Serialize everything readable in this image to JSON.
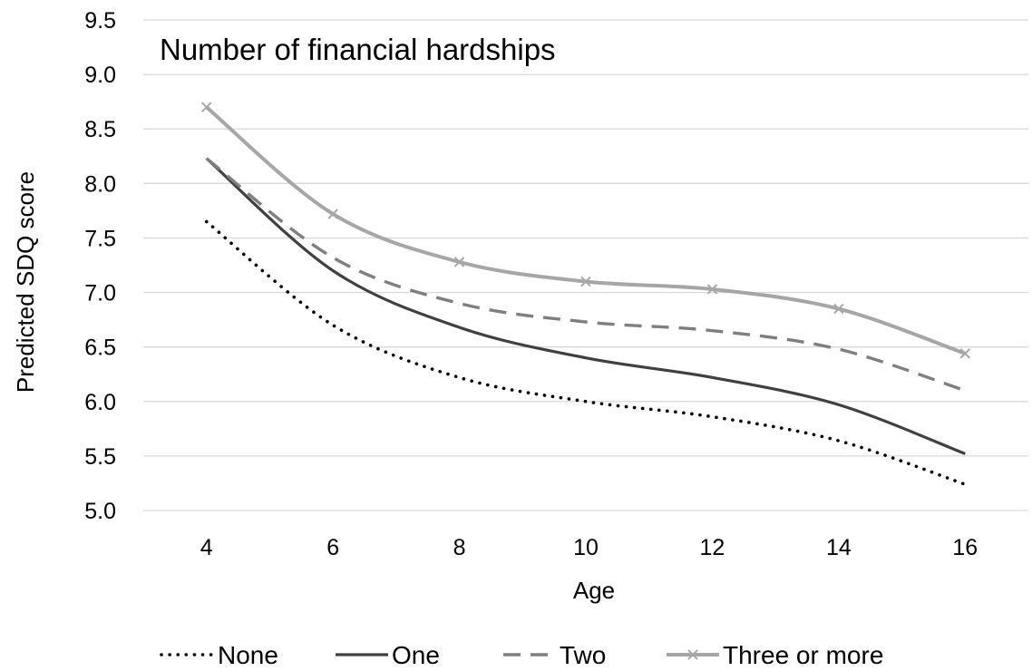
{
  "chart_data": {
    "type": "line",
    "title": "Number of financial hardships",
    "xlabel": "Age",
    "ylabel": "Predicted SDQ score",
    "x": [
      4,
      6,
      8,
      10,
      12,
      14,
      16
    ],
    "xlim": [
      3,
      17
    ],
    "ylim": [
      5.0,
      9.5
    ],
    "yticks": [
      "5.0",
      "5.5",
      "6.0",
      "6.5",
      "7.0",
      "7.5",
      "8.0",
      "8.5",
      "9.0",
      "9.5"
    ],
    "grid": true,
    "legend": "bottom",
    "series": [
      {
        "name": "None",
        "values": [
          7.65,
          6.7,
          6.22,
          6.0,
          5.86,
          5.64,
          5.24
        ],
        "color": "#000000",
        "style": "dotted",
        "marker": "none"
      },
      {
        "name": "One",
        "values": [
          8.23,
          7.2,
          6.68,
          6.4,
          6.22,
          5.97,
          5.52
        ],
        "color": "#404040",
        "style": "solid",
        "marker": "none"
      },
      {
        "name": "Two",
        "values": [
          8.23,
          7.32,
          6.9,
          6.73,
          6.65,
          6.48,
          6.1
        ],
        "color": "#7f7f7f",
        "style": "dashed",
        "marker": "none"
      },
      {
        "name": "Three or more",
        "values": [
          8.7,
          7.72,
          7.28,
          7.1,
          7.03,
          6.85,
          6.44
        ],
        "color": "#a6a6a6",
        "style": "solid",
        "marker": "x"
      }
    ]
  }
}
